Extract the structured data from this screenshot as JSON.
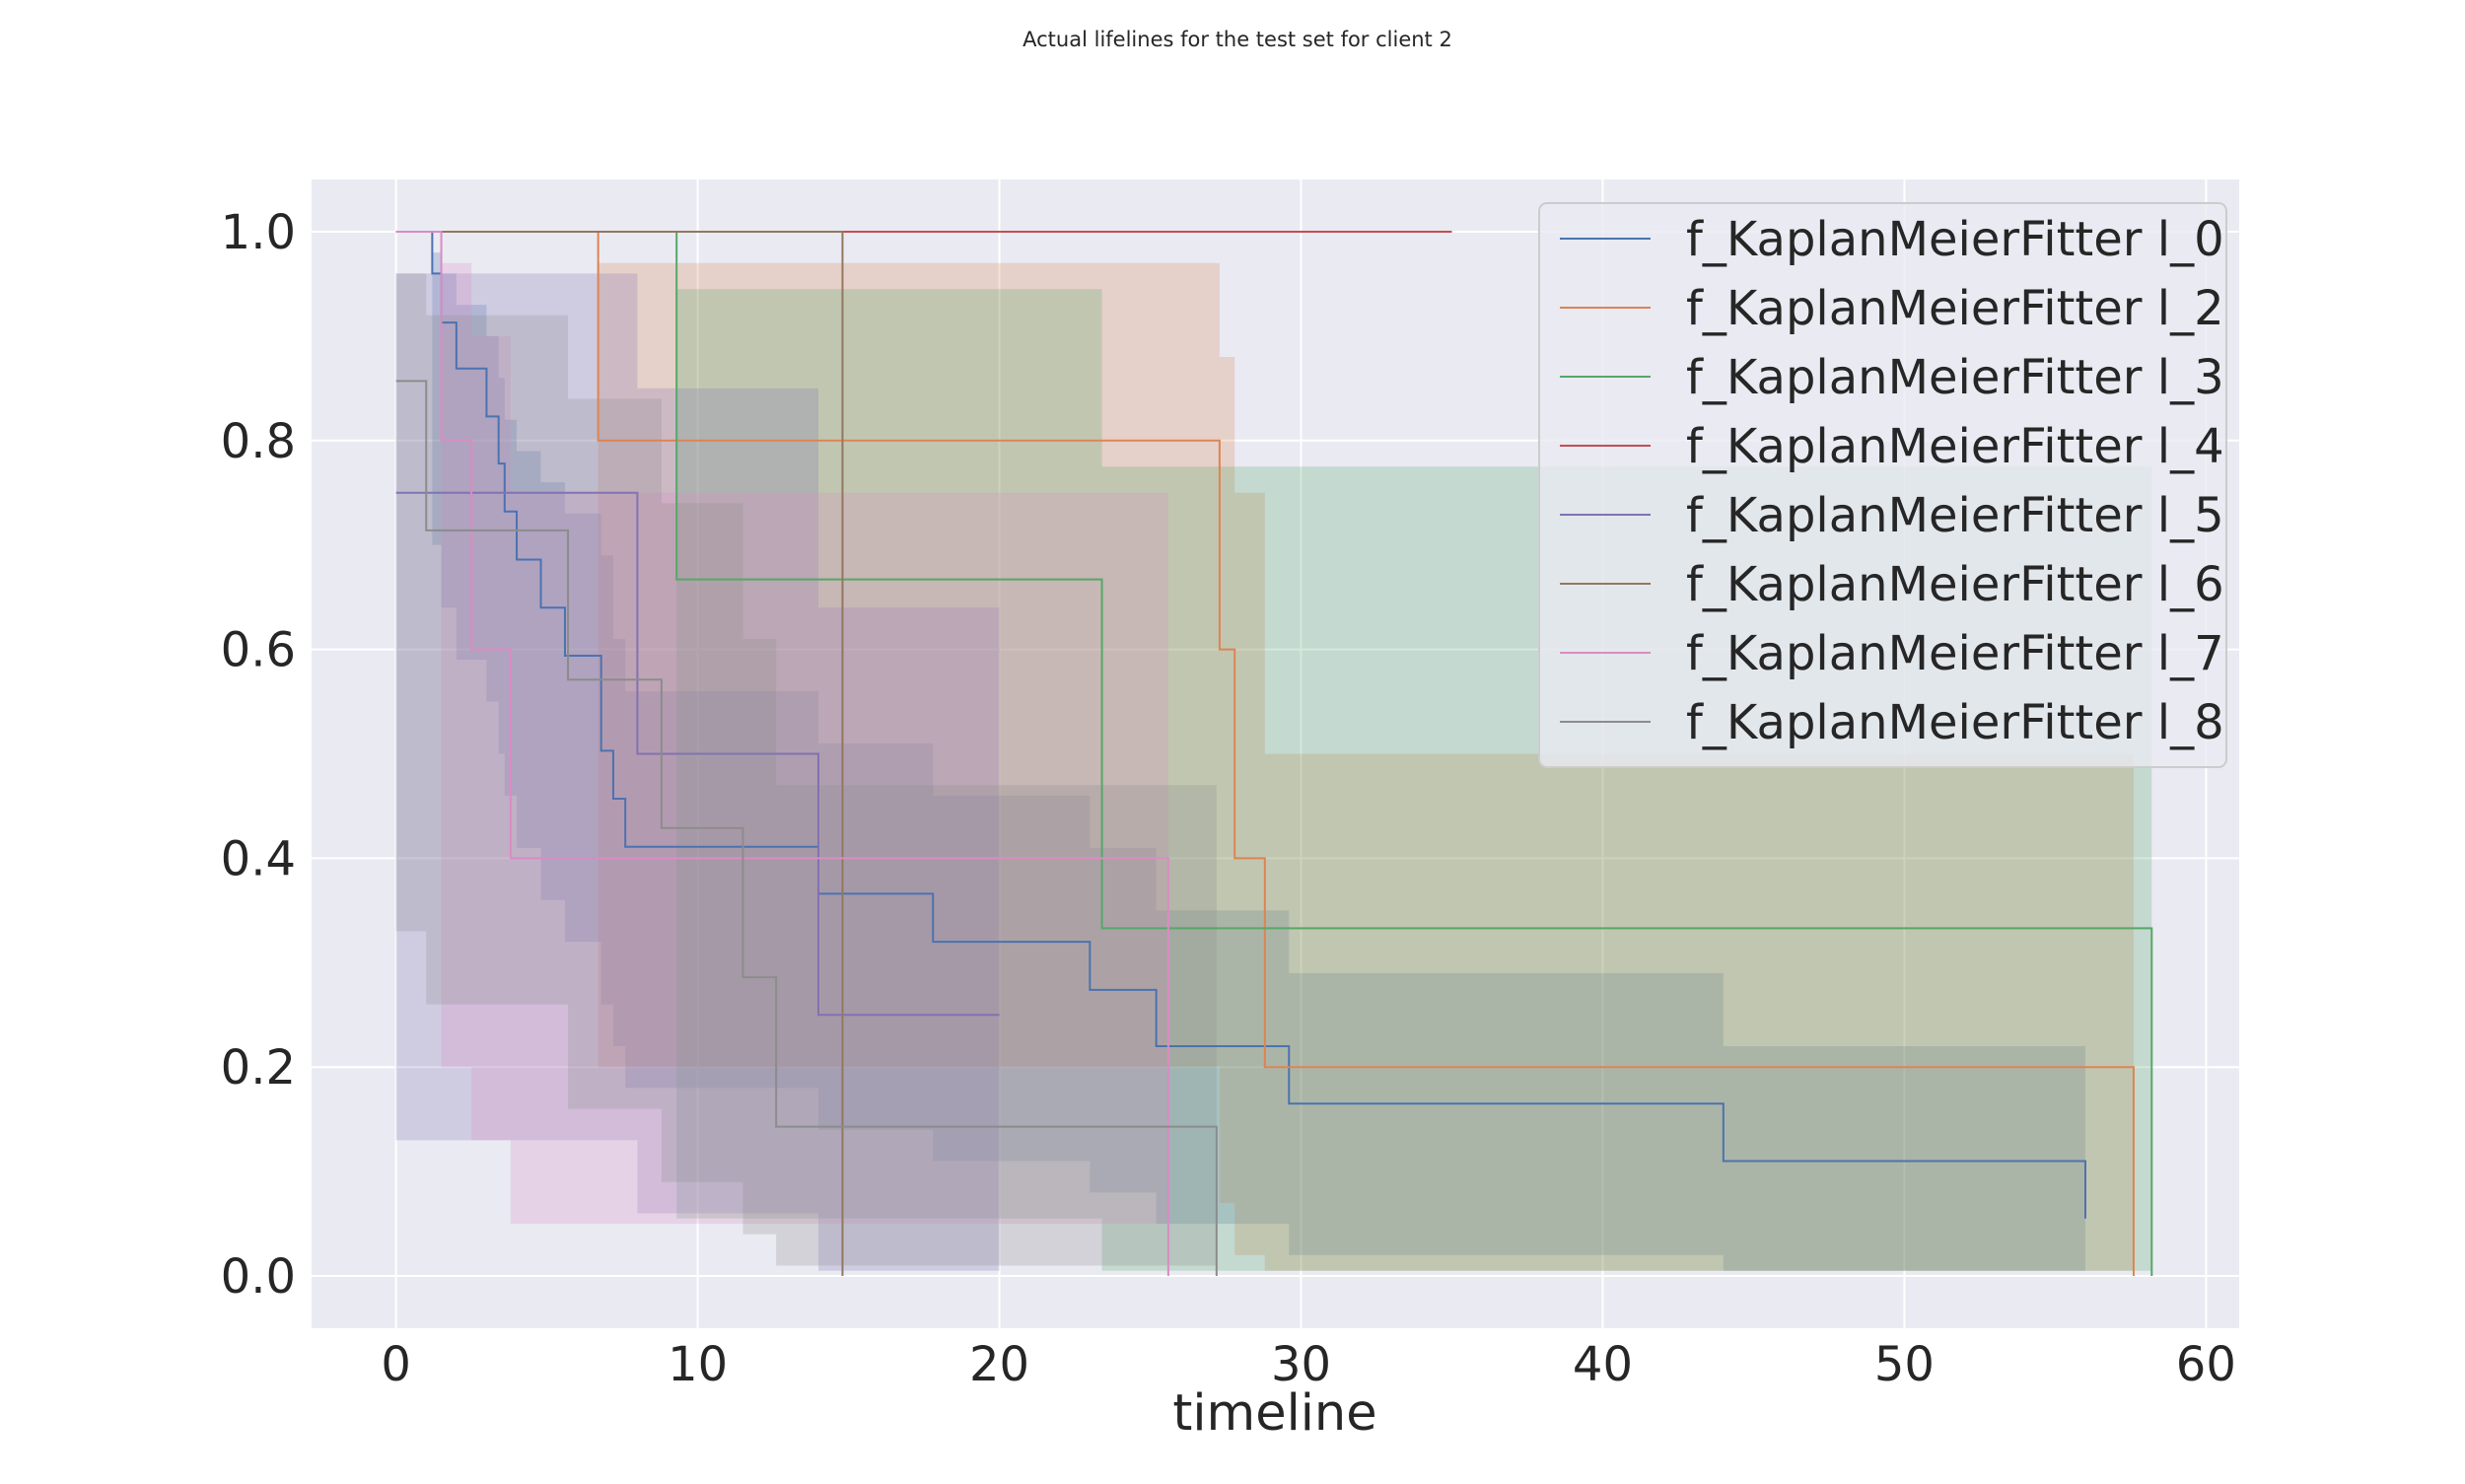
{
  "chart_data": {
    "type": "line",
    "title": "Actual lifelines for the test set for client 2",
    "xlabel": "timeline",
    "ylabel": "",
    "xlim": [
      -2.8,
      61.1
    ],
    "ylim": [
      -0.05,
      1.05
    ],
    "xticks": [
      0,
      10,
      20,
      30,
      40,
      50,
      60
    ],
    "yticks": [
      0.0,
      0.2,
      0.4,
      0.6,
      0.8,
      1.0
    ],
    "xtick_labels": [
      "0",
      "10",
      "20",
      "30",
      "40",
      "50",
      "60"
    ],
    "ytick_labels": [
      "0.0",
      "0.2",
      "0.4",
      "0.6",
      "0.8",
      "1.0"
    ],
    "grid": true,
    "legend_position": "top-right",
    "series": [
      {
        "name": "f_KaplanMeierFitter l_0",
        "color": "#4c72b0",
        "x": [
          0,
          1.0,
          1.2,
          1.5,
          2.0,
          3.0,
          3.4,
          3.6,
          4.0,
          4.8,
          5.6,
          6.8,
          7.2,
          7.6,
          14.0,
          17.8,
          23.0,
          25.2,
          29.6,
          44.0,
          56.0
        ],
        "y": [
          1.0,
          1.0,
          0.96,
          0.913,
          0.869,
          0.823,
          0.778,
          0.732,
          0.686,
          0.64,
          0.594,
          0.503,
          0.457,
          0.411,
          0.366,
          0.32,
          0.274,
          0.22,
          0.165,
          0.11,
          0.055
        ],
        "ci_upper": [
          1.0,
          1.0,
          0.98,
          0.96,
          0.93,
          0.9,
          0.86,
          0.82,
          0.79,
          0.76,
          0.73,
          0.69,
          0.61,
          0.56,
          0.51,
          0.46,
          0.41,
          0.35,
          0.29,
          0.22,
          0.22
        ],
        "ci_lower": [
          1.0,
          1.0,
          0.7,
          0.64,
          0.59,
          0.55,
          0.5,
          0.46,
          0.41,
          0.36,
          0.32,
          0.26,
          0.22,
          0.18,
          0.14,
          0.11,
          0.08,
          0.05,
          0.02,
          0.005,
          0.005
        ]
      },
      {
        "name": "f_KaplanMeierFitter l_2",
        "color": "#dd8452",
        "x": [
          0,
          6.7,
          27.3,
          27.8,
          28.8,
          57.6
        ],
        "y": [
          1.0,
          0.8,
          0.6,
          0.4,
          0.2,
          0.0
        ],
        "ci_upper": [
          1.0,
          0.97,
          0.88,
          0.75,
          0.5,
          0.0
        ],
        "ci_lower": [
          1.0,
          0.2,
          0.07,
          0.02,
          0.005,
          0.0
        ]
      },
      {
        "name": "f_KaplanMeierFitter l_3",
        "color": "#55a868",
        "x": [
          0,
          9.3,
          23.4,
          58.2
        ],
        "y": [
          1.0,
          0.667,
          0.333,
          0.0
        ],
        "ci_upper": [
          1.0,
          0.945,
          0.775,
          0.0
        ],
        "ci_lower": [
          1.0,
          0.055,
          0.005,
          0.0
        ]
      },
      {
        "name": "f_KaplanMeierFitter l_4",
        "color": "#c44e52",
        "x": [
          0,
          35.0
        ],
        "y": [
          1.0,
          1.0
        ],
        "ci_upper": [
          1.0,
          1.0
        ],
        "ci_lower": [
          1.0,
          1.0
        ]
      },
      {
        "name": "f_KaplanMeierFitter l_5",
        "color": "#8172b3",
        "x": [
          0,
          8.0,
          14.0,
          20.0
        ],
        "y": [
          0.75,
          0.5,
          0.25,
          0.25
        ],
        "ci_upper": [
          0.96,
          0.85,
          0.64,
          0.64
        ],
        "ci_lower": [
          0.13,
          0.06,
          0.005,
          0.005
        ]
      },
      {
        "name": "f_KaplanMeierFitter l_6",
        "color": "#937860",
        "x": [
          0,
          14.8
        ],
        "y": [
          1.0,
          0.0
        ],
        "ci_upper": [
          1.0,
          0.0
        ],
        "ci_lower": [
          1.0,
          0.0
        ]
      },
      {
        "name": "f_KaplanMeierFitter l_7",
        "color": "#da8bc3",
        "x": [
          0,
          1.5,
          2.5,
          3.8,
          25.6
        ],
        "y": [
          1.0,
          0.8,
          0.6,
          0.4,
          0.0
        ],
        "ci_upper": [
          1.0,
          0.97,
          0.9,
          0.75,
          0.0
        ],
        "ci_lower": [
          1.0,
          0.2,
          0.13,
          0.05,
          0.0
        ]
      },
      {
        "name": "f_KaplanMeierFitter l_8",
        "color": "#8c8c8c",
        "x": [
          0,
          1.0,
          5.7,
          8.8,
          11.5,
          12.6,
          27.2
        ],
        "y": [
          0.857,
          0.714,
          0.571,
          0.429,
          0.286,
          0.143,
          0.0
        ],
        "ci_upper": [
          0.96,
          0.92,
          0.84,
          0.74,
          0.61,
          0.47,
          0.0
        ],
        "ci_lower": [
          0.33,
          0.26,
          0.16,
          0.09,
          0.04,
          0.01,
          0.0
        ]
      }
    ]
  }
}
